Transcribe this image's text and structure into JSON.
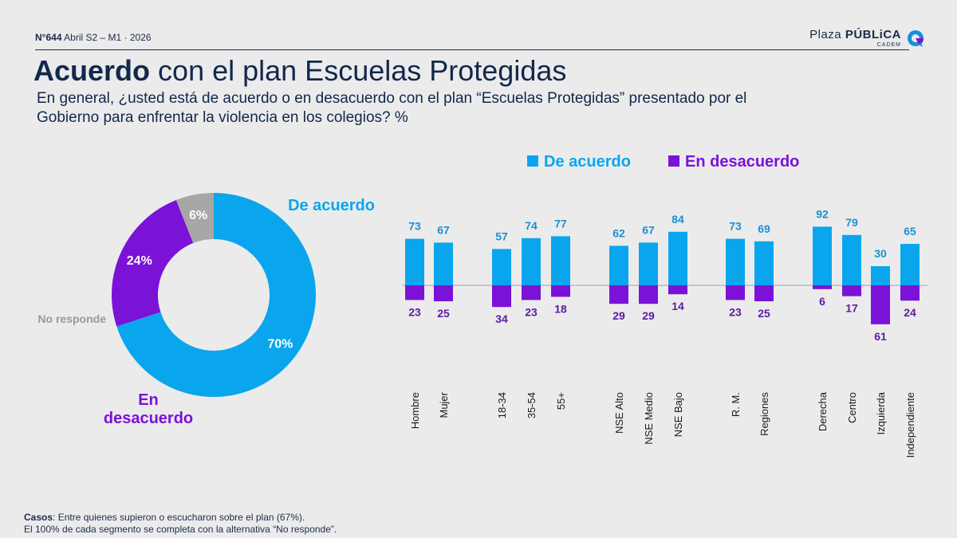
{
  "header": {
    "meta_number": "N°644",
    "meta_rest": "Abril S2 – M1 · 2026",
    "brand_part1": "Plaza",
    "brand_part2": "PÚBLiCA",
    "brand_sub": "CADEM",
    "title_strong": "Acuerdo",
    "title_rest": "con el plan Escuelas Protegidas",
    "question": "En general, ¿usted está de acuerdo o en desacuerdo con el plan “Escuelas Protegidas” presentado por el Gobierno para enfrentar la violencia en los colegios? %"
  },
  "colors": {
    "agree": "#0aa6ed",
    "disagree": "#7b12d8",
    "no_answer": "#a7a7a7",
    "value_agree_text": "#1b8fd6",
    "value_disagree_text": "#5e1aa3"
  },
  "legend": {
    "agree": "De acuerdo",
    "disagree": "En desacuerdo"
  },
  "chart_data": [
    {
      "type": "pie",
      "slices": [
        {
          "label": "De acuerdo",
          "value": 70,
          "value_label": "70%"
        },
        {
          "label": "En desacuerdo",
          "value": 24,
          "value_label": "24%"
        },
        {
          "label": "No responde",
          "value": 6,
          "value_label": "6%"
        }
      ]
    },
    {
      "type": "bar",
      "categories": [
        "Hombre",
        "Mujer",
        "18-34",
        "35-54",
        "55+",
        "NSE Alto",
        "NSE Medio",
        "NSE Bajo",
        "R. M.",
        "Regiones",
        "Derecha",
        "Centro",
        "Izquierda",
        "Independiente"
      ],
      "groups": [
        [
          0,
          1
        ],
        [
          2,
          3,
          4
        ],
        [
          5,
          6,
          7
        ],
        [
          8,
          9
        ],
        [
          10,
          11,
          12,
          13
        ]
      ],
      "series": [
        {
          "name": "De acuerdo",
          "values": [
            73,
            67,
            57,
            74,
            77,
            62,
            67,
            84,
            73,
            69,
            92,
            79,
            30,
            65
          ]
        },
        {
          "name": "En desacuerdo",
          "values": [
            23,
            25,
            34,
            23,
            18,
            29,
            29,
            14,
            23,
            25,
            6,
            17,
            61,
            24
          ]
        }
      ]
    }
  ],
  "footer": {
    "label": "Casos",
    "line1_rest": ": Entre quienes supieron o escucharon sobre el plan (67%).",
    "line2": "El 100% de cada segmento se completa con la alternativa “No responde”."
  }
}
